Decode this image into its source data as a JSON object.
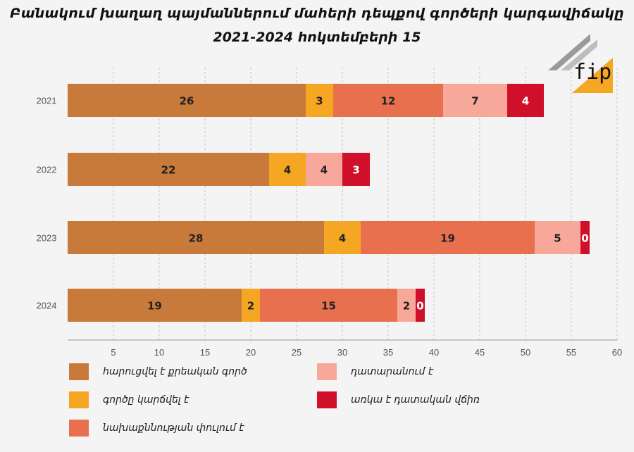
{
  "title": "Բանակում խաղաղ պայմաններում մահերի դեպքով գործերի կարգավիճակը",
  "subtitle": "2021-2024 հոկտեմբերի 15",
  "logo_text": "fip",
  "colors": {
    "criminal_case": "#c87a3a",
    "case_dropped": "#f5a623",
    "pretrial": "#e8704f",
    "in_court": "#f8a89a",
    "verdict": "#d0102a"
  },
  "chart_data": {
    "type": "bar",
    "orientation": "horizontal",
    "stacked": true,
    "categories": [
      "2021",
      "2022",
      "2023",
      "2024"
    ],
    "series": [
      {
        "name": "հարուցվել է քրեական գործ",
        "color_key": "criminal_case",
        "values": [
          26,
          22,
          28,
          19
        ]
      },
      {
        "name": "գործը կարճվել է",
        "color_key": "case_dropped",
        "values": [
          3,
          4,
          4,
          2
        ]
      },
      {
        "name": "նախաքննության փուլում է",
        "color_key": "pretrial",
        "values": [
          12,
          0,
          19,
          15
        ]
      },
      {
        "name": "դատարանում է",
        "color_key": "in_court",
        "values": [
          7,
          4,
          5,
          2
        ]
      },
      {
        "name": "առկա է դատական վճիռ",
        "color_key": "verdict",
        "values": [
          4,
          3,
          0,
          0
        ]
      }
    ],
    "xlim": [
      0,
      60
    ],
    "xticks": [
      5,
      10,
      15,
      20,
      25,
      30,
      35,
      40,
      45,
      50,
      55,
      60
    ],
    "grid": true,
    "legend_position": "bottom"
  }
}
